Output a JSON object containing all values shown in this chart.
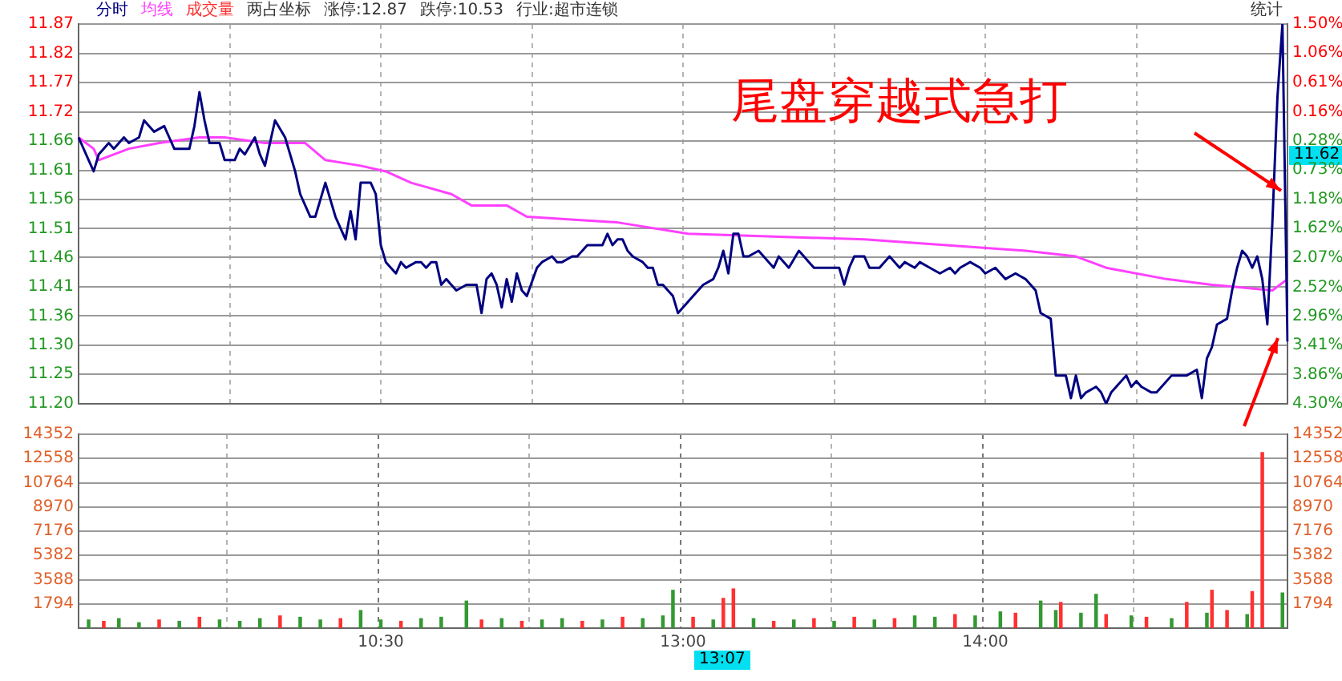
{
  "chart_data": [
    {
      "type": "line",
      "title": "尾盘穿越式急打",
      "annotations": [
        "两占坐标",
        "涨停:12.87",
        "跌停:10.53",
        "行业:超市连锁",
        "统计",
        "11.62"
      ],
      "legend": "top left",
      "grid": true,
      "marker": "none",
      "line_style": "solid",
      "tick_labels": "y",
      "categories": [
        null,
        null,
        null,
        null,
        null,
        null,
        null,
        null,
        null,
        null,
        null,
        null,
        null,
        null,
        null,
        null,
        null,
        null,
        null,
        null,
        null,
        null,
        null,
        null,
        null,
        null,
        null,
        null,
        null,
        null,
        null,
        null,
        null,
        null,
        null,
        null,
        null,
        null,
        null,
        null,
        null,
        null,
        null,
        null,
        null,
        null,
        null,
        null,
        null,
        null,
        null,
        null,
        null,
        null,
        null,
        null,
        null,
        null,
        null,
        null,
        null,
        null,
        null,
        null,
        null,
        null,
        null,
        null,
        null,
        null,
        null,
        null,
        null,
        null,
        null,
        null,
        null,
        null,
        null,
        null,
        null,
        null,
        null,
        null,
        null,
        null,
        null,
        null,
        null,
        null,
        null,
        null,
        null,
        null,
        null,
        null,
        null,
        null,
        null,
        null,
        null,
        null,
        null,
        null,
        null,
        null,
        null,
        null,
        null,
        null,
        null,
        null,
        null,
        null,
        null,
        null,
        null,
        null,
        null,
        null,
        null,
        null,
        null,
        null,
        null,
        null,
        null,
        null,
        null,
        null,
        null,
        null,
        null,
        null,
        null,
        null,
        null,
        null,
        null,
        null,
        null,
        null,
        null,
        null,
        null,
        null,
        null,
        null,
        null,
        null,
        null,
        null,
        null,
        null,
        null,
        null,
        null,
        null,
        null,
        null,
        null,
        null,
        null,
        null,
        null,
        null,
        null,
        null,
        null,
        null,
        null,
        null,
        null,
        null,
        null,
        null,
        null,
        null,
        null,
        null,
        null,
        null,
        null,
        null,
        null,
        null,
        null,
        null,
        null,
        null,
        null,
        null,
        null,
        null,
        null,
        null,
        null,
        null,
        null,
        null,
        null,
        null,
        null,
        null,
        null,
        null,
        null,
        null,
        null,
        null,
        null,
        null,
        null,
        null,
        null,
        null,
        null,
        null,
        null,
        null,
        null,
        null,
        null,
        null,
        null,
        null,
        null,
        null,
        null,
        null,
        null,
        null,
        null,
        null,
        null,
        null,
        null,
        null,
        null,
        null,
        null
      ],
      "ylim": [
        11.2,
        11.87
      ],
      "yticks": [
        11.87,
        {
          "value": 11.818,
          "label": "11.82"
        },
        {
          "value": 11.767,
          "label": "11.77"
        },
        {
          "value": 11.715,
          "label": "11.72"
        },
        {
          "value": 11.664,
          "label": "11.66"
        },
        {
          "value": 11.612,
          "label": "11.61"
        },
        {
          "value": 11.561,
          "label": "11.56"
        },
        {
          "value": 11.509,
          "label": "11.51"
        },
        {
          "value": 11.458,
          "label": "11.46"
        },
        {
          "value": 11.406,
          "label": "11.41"
        },
        {
          "value": 11.355,
          "label": "11.36"
        },
        {
          "value": 11.303,
          "label": "11.30"
        },
        {
          "value": 11.252,
          "label": "11.25"
        },
        {
          "value": 11.2,
          "label": "11.20"
        }
      ],
      "y2lim": [
        -4.3,
        1.5
      ],
      "y2ticks": [
        {
          "value": 1.5,
          "label": "1.50%"
        },
        {
          "value": 1.06,
          "label": "1.06%"
        },
        {
          "value": 0.61,
          "label": "0.61%"
        },
        {
          "value": 0.16,
          "label": "0.16%"
        },
        {
          "value": -0.28,
          "label": "0.28%"
        },
        {
          "value": -0.73,
          "label": "0.73%"
        },
        {
          "value": -1.18,
          "label": "1.18%"
        },
        {
          "value": -1.62,
          "label": "1.62%"
        },
        {
          "value": -2.07,
          "label": "2.07%"
        },
        {
          "value": -2.52,
          "label": "2.52%"
        },
        {
          "value": -2.96,
          "label": "2.96%"
        },
        {
          "value": -3.41,
          "label": "3.41%"
        },
        {
          "value": -3.86,
          "label": "3.86%"
        },
        {
          "value": -4.3,
          "label": "4.30%"
        }
      ],
      "series": [
        {
          "name": "分时",
          "color": "#000080",
          "values": [
            11.67,
            null,
            11.63,
            11.61,
            11.64,
            null,
            11.66,
            11.65,
            null,
            11.67,
            11.66,
            null,
            11.67,
            11.7,
            null,
            11.68,
            null,
            11.69,
            11.67,
            11.65,
            null,
            null,
            11.65,
            11.69,
            11.75,
            11.7,
            11.66,
            null,
            11.66,
            11.63,
            null,
            11.63,
            11.65,
            11.64,
            null,
            11.67,
            11.64,
            11.62,
            null,
            11.7,
            null,
            11.67,
            null,
            11.61,
            11.57,
            null,
            11.53,
            11.53,
            null,
            11.59,
            null,
            11.53,
            null,
            11.49,
            11.54,
            11.49,
            11.59,
            null,
            11.59,
            11.57,
            11.48,
            11.45,
            null,
            11.43,
            11.45,
            11.44,
            null,
            11.45,
            11.45,
            11.44,
            11.45,
            11.45,
            11.41,
            11.42,
            11.41,
            11.4,
            null,
            11.41,
            null,
            11.41,
            11.36,
            11.42,
            11.43,
            11.41,
            11.37,
            11.42,
            11.38,
            11.43,
            11.4,
            11.39,
            null,
            11.44,
            11.45,
            null,
            11.46,
            11.45,
            11.45,
            null,
            11.46,
            11.46,
            null,
            11.48,
            null,
            11.48,
            11.48,
            11.5,
            11.48,
            11.49,
            11.49,
            11.47,
            11.46,
            null,
            11.45,
            11.44,
            11.44,
            11.41,
            11.41,
            null,
            11.39,
            11.36,
            11.37,
            null,
            11.39,
            null,
            11.41,
            null,
            11.42,
            11.44,
            11.47,
            11.43,
            11.5,
            11.5,
            11.46,
            11.46,
            null,
            11.47,
            11.46,
            null,
            11.44,
            11.46,
            null,
            11.44,
            null,
            11.47,
            11.46,
            11.45,
            11.44,
            11.44,
            null,
            11.44,
            null,
            11.44,
            11.41,
            11.44,
            11.46,
            null,
            11.46,
            11.44,
            null,
            11.44,
            null,
            11.46,
            null,
            11.44,
            11.45,
            null,
            11.44,
            11.45,
            null,
            11.44,
            null,
            11.43,
            null,
            11.44,
            11.43,
            11.44,
            null,
            11.45,
            null,
            11.44,
            11.43,
            null,
            11.44,
            null,
            11.42,
            null,
            11.43,
            null,
            11.42,
            null,
            11.4,
            11.36,
            null,
            11.35,
            11.25,
            null,
            11.25,
            11.21,
            11.25,
            11.21,
            11.22,
            null,
            11.23,
            11.22,
            11.2,
            11.22,
            11.23,
            null,
            11.25,
            11.23,
            11.24,
            11.23,
            null,
            11.22,
            11.22,
            11.23,
            null,
            11.25,
            11.25,
            null,
            11.25,
            null,
            11.26,
            11.21,
            11.28,
            11.3,
            11.34,
            null,
            11.35,
            11.4,
            11.44,
            11.47,
            11.46,
            11.44,
            11.46,
            11.42,
            11.34,
            11.52,
            11.74,
            11.87,
            11.31
          ]
        },
        {
          "name": "均线",
          "color": "#ff40ff",
          "values": [
            11.67,
            null,
            null,
            11.65,
            11.63,
            null,
            null,
            null,
            null,
            null,
            11.65,
            null,
            null,
            null,
            null,
            null,
            11.66,
            null,
            null,
            null,
            null,
            null,
            null,
            null,
            11.67,
            null,
            null,
            null,
            null,
            11.67,
            null,
            null,
            null,
            null,
            null,
            null,
            null,
            11.66,
            null,
            null,
            null,
            null,
            null,
            null,
            null,
            11.66,
            null,
            null,
            null,
            11.63,
            null,
            null,
            null,
            null,
            null,
            null,
            11.62,
            null,
            null,
            null,
            null,
            11.61,
            null,
            null,
            null,
            null,
            11.59,
            null,
            null,
            null,
            null,
            null,
            null,
            null,
            11.57,
            null,
            null,
            null,
            11.55,
            null,
            null,
            null,
            null,
            null,
            null,
            11.55,
            null,
            null,
            null,
            11.53,
            null,
            null,
            null,
            null,
            null,
            null,
            null,
            null,
            null,
            null,
            null,
            null,
            null,
            null,
            null,
            null,
            null,
            11.52,
            null,
            null,
            null,
            null,
            null,
            null,
            null,
            null,
            null,
            null,
            null,
            null,
            null,
            11.5,
            null,
            null,
            null,
            null,
            null,
            null,
            null,
            null,
            null,
            null,
            null,
            null,
            null,
            null,
            null,
            null,
            null,
            null,
            null,
            null,
            null,
            null,
            null,
            null,
            null,
            null,
            null,
            null,
            null,
            null,
            null,
            null,
            null,
            null,
            11.49,
            null,
            null,
            null,
            null,
            null,
            null,
            null,
            null,
            null,
            null,
            null,
            null,
            null,
            null,
            null,
            null,
            null,
            null,
            null,
            null,
            null,
            null,
            null,
            null,
            null,
            null,
            null,
            null,
            null,
            null,
            null,
            11.47,
            null,
            null,
            null,
            null,
            null,
            null,
            null,
            null,
            null,
            11.46,
            null,
            null,
            null,
            null,
            null,
            11.44,
            null,
            null,
            null,
            null,
            null,
            null,
            null,
            null,
            null,
            null,
            null,
            11.42,
            null,
            null,
            null,
            null,
            null,
            null,
            null,
            null,
            11.41,
            null,
            null,
            null,
            null,
            null,
            null,
            null,
            null,
            null,
            null,
            null,
            11.4,
            null,
            null,
            11.42
          ]
        }
      ]
    },
    {
      "type": "bar",
      "grid": true,
      "legend": "top left",
      "annotations": [
        "13:07"
      ],
      "categories": [
        null,
        null,
        null,
        null,
        null,
        null,
        null,
        null,
        null,
        null,
        null,
        null,
        null,
        null,
        null,
        null,
        null,
        null,
        null,
        null,
        null,
        null,
        null,
        null,
        null,
        null,
        null,
        null,
        null,
        null,
        null,
        null,
        null,
        null,
        null,
        null,
        null,
        null,
        null,
        null,
        null,
        null,
        null,
        null,
        null,
        null,
        null,
        null,
        null,
        null,
        null,
        null,
        null,
        null,
        null,
        null,
        null,
        null,
        null,
        null,
        "10:30",
        null,
        null,
        null,
        null,
        null,
        null,
        null,
        null,
        null,
        null,
        null,
        null,
        null,
        null,
        null,
        null,
        null,
        null,
        null,
        null,
        null,
        null,
        null,
        null,
        null,
        null,
        null,
        null,
        null,
        null,
        null,
        null,
        null,
        null,
        null,
        null,
        null,
        null,
        null,
        null,
        null,
        null,
        null,
        null,
        null,
        null,
        null,
        null,
        null,
        null,
        null,
        null,
        null,
        null,
        null,
        null,
        null,
        null,
        null,
        "13:00",
        null,
        null,
        null,
        null,
        null,
        null,
        null,
        null,
        null,
        null,
        null,
        null,
        null,
        null,
        null,
        null,
        null,
        null,
        null,
        null,
        null,
        null,
        null,
        null,
        null,
        null,
        null,
        null,
        null,
        null,
        null,
        null,
        null,
        null,
        null,
        null,
        null,
        null,
        null,
        null,
        null,
        null,
        null,
        null,
        null,
        null,
        null,
        null,
        null,
        null,
        null,
        null,
        null,
        null,
        null,
        null,
        null,
        null,
        null,
        "14:00",
        null,
        null,
        null,
        null,
        null,
        null,
        null,
        null,
        null,
        null,
        null,
        null,
        null,
        null,
        null,
        null,
        null,
        null,
        null,
        null,
        null,
        null,
        null,
        null,
        null,
        null,
        null,
        null,
        null,
        null,
        null,
        null,
        null,
        null,
        null,
        null,
        null,
        null,
        null,
        null,
        null,
        null,
        null,
        null,
        null,
        null,
        null,
        null,
        null,
        null,
        null,
        null,
        null,
        null,
        null,
        null,
        null,
        null,
        null,
        null
      ],
      "ylim": [
        0,
        14352
      ],
      "yticks": [
        1794,
        3588,
        5382,
        7176,
        8970,
        10764,
        12558,
        14352
      ],
      "y2lim": [
        0,
        14352
      ],
      "y2ticks": [
        1794,
        3588,
        5382,
        7176,
        8970,
        10764,
        12558,
        14352
      ],
      "series": [
        {
          "name": "成交量",
          "color": "#ff3030",
          "values": [
            null,
            null,
            null,
            null,
            null,
            500,
            null,
            null,
            null,
            null,
            null,
            null,
            null,
            null,
            null,
            null,
            600,
            null,
            null,
            null,
            null,
            null,
            null,
            null,
            800,
            null,
            null,
            null,
            null,
            null,
            null,
            null,
            null,
            null,
            null,
            null,
            null,
            null,
            null,
            null,
            900,
            null,
            null,
            null,
            null,
            null,
            null,
            null,
            null,
            null,
            null,
            null,
            700,
            null,
            null,
            null,
            null,
            null,
            null,
            null,
            null,
            null,
            null,
            null,
            500,
            null,
            null,
            null,
            null,
            null,
            null,
            null,
            null,
            null,
            null,
            null,
            null,
            null,
            null,
            null,
            600,
            null,
            null,
            null,
            null,
            null,
            null,
            null,
            500,
            null,
            null,
            null,
            null,
            null,
            null,
            null,
            null,
            null,
            null,
            null,
            500,
            null,
            null,
            null,
            null,
            null,
            null,
            null,
            800,
            null,
            null,
            null,
            null,
            null,
            null,
            null,
            null,
            null,
            null,
            null,
            null,
            null,
            800,
            null,
            null,
            null,
            null,
            null,
            2200,
            null,
            2900,
            null,
            null,
            null,
            null,
            null,
            null,
            null,
            500,
            null,
            null,
            null,
            null,
            null,
            null,
            null,
            700,
            null,
            null,
            null,
            null,
            null,
            null,
            null,
            800,
            null,
            null,
            null,
            null,
            null,
            null,
            null,
            700,
            null,
            null,
            null,
            null,
            null,
            null,
            null,
            null,
            null,
            null,
            null,
            1000,
            null,
            null,
            null,
            null,
            null,
            null,
            null,
            null,
            null,
            null,
            null,
            1100,
            null,
            null,
            null,
            null,
            null,
            null,
            null,
            null,
            1900,
            null,
            null,
            null,
            null,
            null,
            null,
            null,
            null,
            1000,
            null,
            null,
            null,
            null,
            null,
            null,
            null,
            800,
            null,
            null,
            null,
            null,
            null,
            null,
            null,
            1900,
            null,
            null,
            null,
            null,
            2800,
            null,
            null,
            1300,
            null,
            null,
            null,
            null,
            2700,
            null,
            13000,
            null,
            null,
            null,
            null,
            null
          ]
        },
        {
          "color": "#339933",
          "values": [
            null,
            null,
            600,
            null,
            null,
            null,
            null,
            null,
            700,
            null,
            null,
            null,
            400,
            null,
            null,
            null,
            null,
            null,
            null,
            null,
            500,
            null,
            null,
            null,
            null,
            null,
            null,
            null,
            600,
            null,
            null,
            null,
            500,
            null,
            null,
            null,
            700,
            null,
            null,
            null,
            null,
            null,
            null,
            null,
            800,
            null,
            null,
            null,
            600,
            null,
            null,
            null,
            null,
            null,
            null,
            null,
            1300,
            null,
            null,
            null,
            600,
            null,
            null,
            null,
            null,
            null,
            null,
            null,
            700,
            null,
            null,
            null,
            800,
            null,
            null,
            null,
            null,
            2000,
            null,
            null,
            null,
            null,
            null,
            null,
            700,
            null,
            null,
            null,
            null,
            null,
            null,
            null,
            600,
            null,
            null,
            null,
            700,
            null,
            null,
            null,
            null,
            null,
            null,
            null,
            600,
            null,
            null,
            null,
            null,
            null,
            null,
            null,
            700,
            null,
            null,
            null,
            900,
            null,
            2800,
            null,
            null,
            null,
            null,
            null,
            null,
            null,
            600,
            null,
            null,
            null,
            null,
            null,
            null,
            null,
            700,
            null,
            null,
            null,
            null,
            null,
            null,
            null,
            600,
            null,
            null,
            null,
            null,
            null,
            null,
            null,
            500,
            null,
            null,
            null,
            null,
            null,
            null,
            null,
            600,
            null,
            null,
            null,
            null,
            null,
            null,
            null,
            900,
            null,
            null,
            null,
            800,
            null,
            null,
            null,
            null,
            null,
            null,
            null,
            900,
            null,
            null,
            null,
            null,
            1200,
            null,
            null,
            null,
            null,
            null,
            null,
            null,
            2000,
            null,
            null,
            1300,
            null,
            null,
            null,
            null,
            1100,
            null,
            null,
            2500,
            null,
            null,
            null,
            null,
            null,
            null,
            900,
            null,
            null,
            null,
            null,
            null,
            null,
            null,
            700,
            null,
            null,
            null,
            null,
            null,
            null,
            1100,
            null,
            null,
            null,
            null,
            null,
            null,
            null,
            1000,
            null,
            null,
            null,
            null,
            null,
            null,
            2600,
            null
          ]
        }
      ]
    }
  ]
}
